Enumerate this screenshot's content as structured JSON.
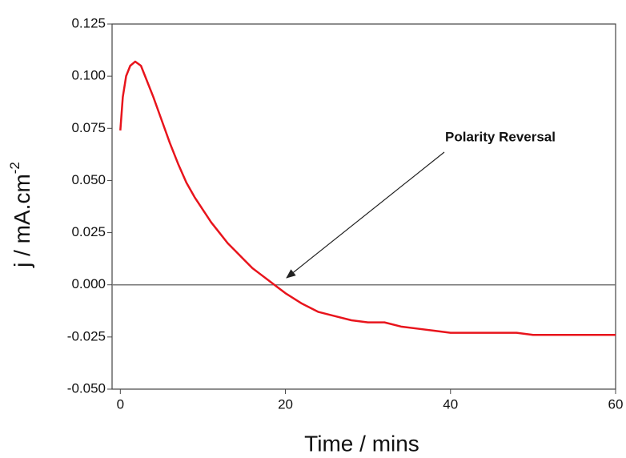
{
  "chart_data": {
    "type": "line",
    "xlabel": "Time /  mins",
    "ylabel": {
      "text": "j  /  mA.cm",
      "superscript": "-2"
    },
    "annotation": "Polarity Reversal",
    "x": [
      0,
      0.3,
      0.7,
      1.2,
      1.8,
      2.5,
      3,
      4,
      5,
      6,
      7,
      8,
      9,
      10,
      11,
      12,
      13,
      14,
      15,
      16,
      17,
      18,
      19,
      20,
      22,
      24,
      26,
      28,
      30,
      32,
      34,
      36,
      38,
      40,
      42,
      44,
      46,
      48,
      50,
      55,
      60
    ],
    "series": [
      {
        "color": "#e8141c",
        "values": [
          0.074,
          0.09,
          0.1,
          0.105,
          0.107,
          0.105,
          0.1,
          0.09,
          0.079,
          0.068,
          0.058,
          0.049,
          0.042,
          0.036,
          0.03,
          0.025,
          0.02,
          0.016,
          0.012,
          0.008,
          0.005,
          0.002,
          -0.001,
          -0.004,
          -0.009,
          -0.013,
          -0.015,
          -0.017,
          -0.018,
          -0.018,
          -0.02,
          -0.021,
          -0.022,
          -0.023,
          -0.023,
          -0.023,
          -0.023,
          -0.023,
          -0.024,
          -0.024,
          -0.024
        ]
      }
    ],
    "xlim": [
      -1,
      60
    ],
    "xticks": [
      0,
      20,
      40,
      60
    ],
    "ylim": [
      -0.05,
      0.125
    ],
    "yticks": [
      {
        "value": -0.05,
        "label": "-0.050"
      },
      -0.025,
      {
        "value": 0,
        "label": "0.000"
      },
      0.025,
      {
        "value": 0.05,
        "label": "0.050"
      },
      0.075,
      {
        "value": 0.1,
        "label": "0.100"
      },
      0.125
    ],
    "zero_line": true
  }
}
